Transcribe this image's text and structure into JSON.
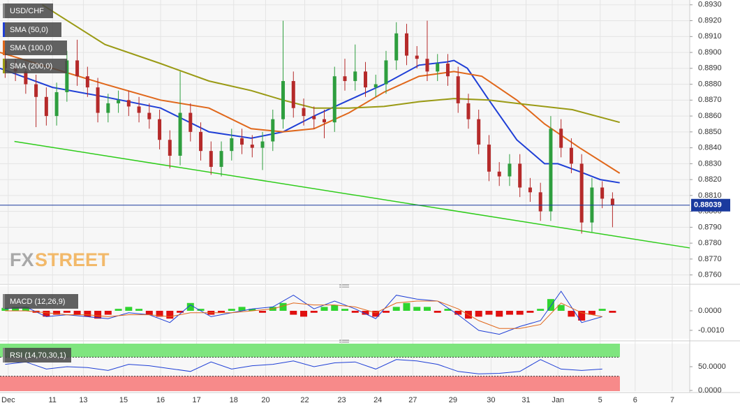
{
  "chart_data": [
    {
      "type": "candlestick",
      "title": "USD/CHF",
      "xlim": [
        -0.5,
        66.5
      ],
      "xticks": [
        {
          "value": 0.3,
          "label": "Dec"
        },
        {
          "value": 4.6,
          "label": "11"
        },
        {
          "value": 7.6,
          "label": "13"
        },
        {
          "value": 11.5,
          "label": "15"
        },
        {
          "value": 15.1,
          "label": "16"
        },
        {
          "value": 18.6,
          "label": "17"
        },
        {
          "value": 22.2,
          "label": "18"
        },
        {
          "value": 25.3,
          "label": "20"
        },
        {
          "value": 29.1,
          "label": "22"
        },
        {
          "value": 32.7,
          "label": "23"
        },
        {
          "value": 36.2,
          "label": "24"
        },
        {
          "value": 39.6,
          "label": "27"
        },
        {
          "value": 43.5,
          "label": "29"
        },
        {
          "value": 47.2,
          "label": "30"
        },
        {
          "value": 50.6,
          "label": "31"
        },
        {
          "value": 53.7,
          "label": "Jan"
        },
        {
          "value": 57.8,
          "label": "5"
        },
        {
          "value": 61.2,
          "label": "6"
        },
        {
          "value": 64.8,
          "label": "7"
        }
      ],
      "ylim": [
        0.8755,
        0.8933
      ],
      "yticks": [
        {
          "value": 0.893,
          "label": "0.8930"
        },
        {
          "value": 0.892,
          "label": "0.8920"
        },
        {
          "value": 0.891,
          "label": "0.8910"
        },
        {
          "value": 0.89,
          "label": "0.8900"
        },
        {
          "value": 0.889,
          "label": "0.8890"
        },
        {
          "value": 0.888,
          "label": "0.8880"
        },
        {
          "value": 0.887,
          "label": "0.8870"
        },
        {
          "value": 0.886,
          "label": "0.8860"
        },
        {
          "value": 0.885,
          "label": "0.8850"
        },
        {
          "value": 0.884,
          "label": "0.8840"
        },
        {
          "value": 0.883,
          "label": "0.8830"
        },
        {
          "value": 0.882,
          "label": "0.8820"
        },
        {
          "value": 0.881,
          "label": "0.8810"
        },
        {
          "value": 0.88,
          "label": "0.8800"
        },
        {
          "value": 0.879,
          "label": "0.8790"
        },
        {
          "value": 0.878,
          "label": "0.8780"
        },
        {
          "value": 0.877,
          "label": "0.8770"
        },
        {
          "value": 0.876,
          "label": "0.8760"
        }
      ],
      "grid": true,
      "up_color": "#2e9e3e",
      "down_color": "#b52a2a",
      "open": [
        0.8895,
        0.889,
        0.8888,
        0.888,
        0.8872,
        0.886,
        0.8875,
        0.8895,
        0.8885,
        0.8878,
        0.8862,
        0.8868,
        0.887,
        0.8866,
        0.8862,
        0.8858,
        0.8845,
        0.8835,
        0.8862,
        0.885,
        0.8838,
        0.8828,
        0.8838,
        0.8846,
        0.8842,
        0.884,
        0.8844,
        0.8858,
        0.8882,
        0.8865,
        0.886,
        0.8858,
        0.8856,
        0.8885,
        0.8882,
        0.8888,
        0.8878,
        0.888,
        0.8895,
        0.8912,
        0.8898,
        0.8896,
        0.8888,
        0.8893,
        0.8885,
        0.8868,
        0.8858,
        0.8842,
        0.8825,
        0.8822,
        0.883,
        0.8815,
        0.8812,
        0.88,
        0.8852,
        0.884,
        0.883,
        0.8793,
        0.8815,
        0.8808
      ],
      "high": [
        0.8901,
        0.8896,
        0.8894,
        0.8886,
        0.8878,
        0.8881,
        0.8901,
        0.8908,
        0.8891,
        0.8884,
        0.8874,
        0.8876,
        0.8876,
        0.8872,
        0.8868,
        0.8864,
        0.8851,
        0.8888,
        0.8868,
        0.8856,
        0.8844,
        0.8844,
        0.8852,
        0.8852,
        0.8848,
        0.885,
        0.8864,
        0.892,
        0.8888,
        0.8871,
        0.8866,
        0.8864,
        0.8891,
        0.8896,
        0.8905,
        0.8894,
        0.8886,
        0.8901,
        0.8919,
        0.8918,
        0.8904,
        0.892,
        0.8899,
        0.8899,
        0.8891,
        0.8874,
        0.8864,
        0.8848,
        0.8831,
        0.8836,
        0.8836,
        0.8821,
        0.8818,
        0.886,
        0.8858,
        0.8846,
        0.8836,
        0.8821,
        0.8819,
        0.8812
      ],
      "low": [
        0.8884,
        0.8882,
        0.8874,
        0.8853,
        0.8854,
        0.8854,
        0.8869,
        0.8879,
        0.8872,
        0.8856,
        0.8856,
        0.8862,
        0.886,
        0.8856,
        0.8852,
        0.8839,
        0.8827,
        0.8829,
        0.8844,
        0.8832,
        0.8823,
        0.8822,
        0.8832,
        0.8836,
        0.8834,
        0.8826,
        0.8838,
        0.8852,
        0.8859,
        0.8854,
        0.8852,
        0.8846,
        0.885,
        0.8876,
        0.8876,
        0.8872,
        0.8872,
        0.8874,
        0.8889,
        0.8892,
        0.889,
        0.8882,
        0.8882,
        0.8879,
        0.8862,
        0.8852,
        0.8836,
        0.8819,
        0.8816,
        0.8816,
        0.8809,
        0.8806,
        0.8794,
        0.8794,
        0.8834,
        0.8824,
        0.8786,
        0.8787,
        0.8802,
        0.879
      ],
      "close": [
        0.889,
        0.8888,
        0.888,
        0.8872,
        0.886,
        0.8875,
        0.8895,
        0.8885,
        0.8878,
        0.8862,
        0.8868,
        0.887,
        0.8866,
        0.8862,
        0.8858,
        0.8845,
        0.8835,
        0.8862,
        0.885,
        0.8838,
        0.8828,
        0.8838,
        0.8846,
        0.8842,
        0.884,
        0.8844,
        0.8858,
        0.8882,
        0.8865,
        0.886,
        0.8858,
        0.8856,
        0.8885,
        0.8882,
        0.8888,
        0.8878,
        0.888,
        0.8895,
        0.8912,
        0.8898,
        0.8896,
        0.8888,
        0.8893,
        0.8885,
        0.8868,
        0.8858,
        0.8842,
        0.8825,
        0.8822,
        0.883,
        0.8815,
        0.8812,
        0.88,
        0.8852,
        0.884,
        0.883,
        0.8793,
        0.8815,
        0.8808,
        0.8804
      ],
      "series": [
        {
          "name": "SMA (50,0)",
          "color": "#1f3fd6",
          "x": [
            -0.5,
            4.6,
            9.7,
            15.1,
            19.8,
            23.9,
            27.0,
            30.0,
            33.4,
            36.8,
            40.2,
            42.9,
            43.6,
            44.9,
            47.0,
            49.7,
            52.4,
            53.7,
            55.8,
            57.8,
            59.7
          ],
          "values": [
            0.889,
            0.8878,
            0.8872,
            0.8865,
            0.885,
            0.8846,
            0.885,
            0.886,
            0.887,
            0.888,
            0.8892,
            0.8894,
            0.8895,
            0.889,
            0.887,
            0.8845,
            0.883,
            0.883,
            0.8825,
            0.882,
            0.8818
          ]
        },
        {
          "name": "SMA (100,0)",
          "color": "#e0671a",
          "x": [
            -0.5,
            4.6,
            9.7,
            15.1,
            19.8,
            23.9,
            27.0,
            30.0,
            33.4,
            36.8,
            40.2,
            43.6,
            46.3,
            49.7,
            52.4,
            55.8,
            59.7
          ],
          "values": [
            0.89,
            0.889,
            0.888,
            0.887,
            0.8865,
            0.8852,
            0.885,
            0.8852,
            0.8862,
            0.8875,
            0.8885,
            0.8888,
            0.8885,
            0.887,
            0.8855,
            0.884,
            0.8824
          ]
        },
        {
          "name": "SMA (200,0)",
          "color": "#9a9a14",
          "x": [
            3.6,
            9.7,
            15.1,
            19.8,
            23.9,
            27.0,
            30.0,
            33.4,
            36.8,
            40.2,
            43.6,
            47.0,
            51.0,
            55.1,
            59.7
          ],
          "values": [
            0.893,
            0.8905,
            0.8893,
            0.8882,
            0.8876,
            0.887,
            0.8865,
            0.8865,
            0.8866,
            0.8869,
            0.8871,
            0.887,
            0.8867,
            0.8864,
            0.8856
          ]
        }
      ],
      "trendline": {
        "color": "#2ecc1a",
        "x": [
          0.9,
          66.5
        ],
        "values": [
          0.8844,
          0.8777
        ]
      },
      "last_price": {
        "value": 0.88039,
        "label": "0.88039"
      },
      "last_price_color": "#1a3a9e",
      "brand": [
        "FX",
        "STREET"
      ]
    },
    {
      "type": "macd",
      "title": "MACD (12,26,9)",
      "ylim": [
        -0.00143,
        0.00125
      ],
      "yticks": [
        {
          "value": 0,
          "label": "0.0000"
        },
        {
          "value": -0.001,
          "label": "-0.0010"
        }
      ],
      "up_color": "#2fd42f",
      "down_color": "#e01010",
      "histogram": [
        0.00015,
        0.0002,
        0.0002,
        -0.0001,
        -0.0003,
        -0.0002,
        -0.0001,
        -0.0002,
        -0.0003,
        -0.0004,
        -0.0002,
        0.0001,
        0.0002,
        0.0001,
        -0.0002,
        -0.0003,
        -0.0004,
        -0.0001,
        0.0004,
        0.0001,
        -0.0002,
        -0.0001,
        0.0001,
        0.0002,
        0.0001,
        -0.0001,
        0.0002,
        0.0004,
        -0.0002,
        -0.0003,
        -0.0001,
        0.0002,
        0.0003,
        0.0001,
        -0.0001,
        -0.0002,
        -0.0003,
        -0.0001,
        0.0002,
        0.0004,
        0.0002,
        0.0002,
        -0.0001,
        0.0001,
        -0.0002,
        -0.0004,
        -0.0003,
        -0.0002,
        -0.0003,
        -0.0002,
        -0.0002,
        -0.0001,
        0.0001,
        0.0006,
        0.0003,
        -0.0003,
        -0.0005,
        -0.0002,
        0.0001,
        -0.0001
      ],
      "series": [
        {
          "color": "#1f3fd6",
          "x": [
            0,
            2,
            4,
            6,
            8,
            10,
            12,
            14,
            16,
            18,
            20,
            22,
            24,
            26,
            28,
            30,
            32,
            34,
            36,
            38,
            40,
            42,
            44,
            46,
            48,
            50,
            52,
            54,
            56,
            58
          ],
          "values": [
            0.0001,
            0.0002,
            -0.0003,
            -0.0002,
            -0.0003,
            -0.0004,
            -0.0001,
            -0.0002,
            -0.0006,
            0.0003,
            -0.0003,
            -0.0001,
            0.0001,
            0.0002,
            0.0008,
            0.0001,
            0.0005,
            0.0001,
            -0.0004,
            0.0008,
            0.0006,
            0.0005,
            -0.0002,
            -0.001,
            -0.0012,
            -0.0008,
            -0.0005,
            0.001,
            -0.0006,
            -0.0003
          ]
        },
        {
          "color": "#e0671a",
          "x": [
            0,
            2,
            4,
            6,
            8,
            10,
            12,
            14,
            16,
            18,
            20,
            22,
            24,
            26,
            28,
            30,
            32,
            34,
            36,
            38,
            40,
            42,
            44,
            46,
            48,
            50,
            52,
            54,
            56,
            58
          ],
          "values": [
            0,
            0,
            -0.0001,
            -0.0002,
            -0.0002,
            -0.0003,
            -0.0002,
            -0.0002,
            -0.0003,
            -0.0001,
            -0.0001,
            -0.0001,
            0,
            0.0001,
            0.0004,
            0.0003,
            0.0003,
            0.0002,
            -0.0001,
            0.0004,
            0.0005,
            0.0005,
            0.0001,
            -0.0005,
            -0.0009,
            -0.0009,
            -0.0007,
            0.0004,
            -0.0001,
            -0.0003
          ]
        }
      ]
    },
    {
      "type": "rsi",
      "title": "RSI (14,70,30,1)",
      "ylim": [
        -1.5,
        98.5
      ],
      "yticks": [
        {
          "value": 50,
          "label": "50.0000"
        },
        {
          "value": 0,
          "label": "0.0000"
        }
      ],
      "overbought": 70,
      "oversold": 30,
      "overbought_color": "#7fe57f",
      "oversold_color": "#f78a8a",
      "series": [
        {
          "color": "#1f3fd6",
          "x": [
            0,
            2,
            4,
            6,
            8,
            10,
            12,
            14,
            16,
            18,
            20,
            22,
            24,
            26,
            28,
            30,
            32,
            34,
            36,
            38,
            40,
            42,
            44,
            46,
            48,
            50,
            52,
            54,
            56,
            58
          ],
          "values": [
            55,
            60,
            45,
            50,
            48,
            42,
            55,
            52,
            46,
            40,
            60,
            45,
            52,
            55,
            62,
            50,
            58,
            60,
            45,
            65,
            62,
            55,
            40,
            35,
            36,
            40,
            65,
            45,
            42,
            45
          ]
        }
      ]
    }
  ]
}
